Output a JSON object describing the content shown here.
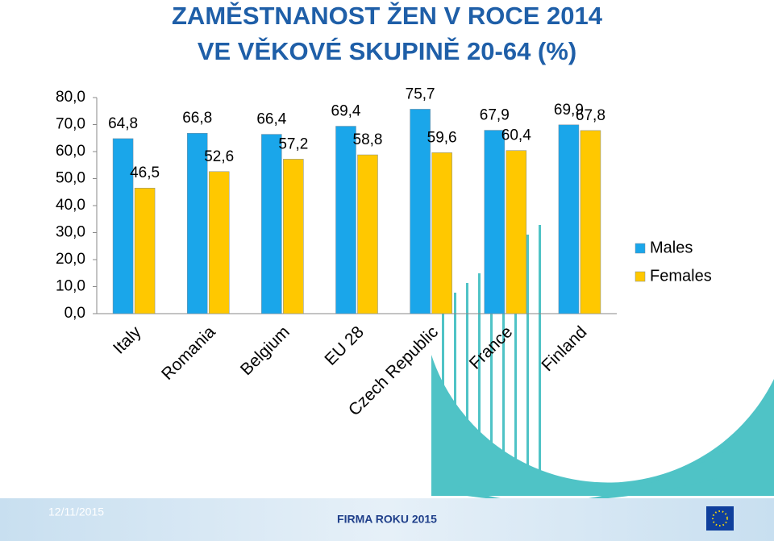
{
  "chart_data": {
    "type": "bar",
    "title": [
      "ZAMĚSTNANOST ŽEN V ROCE 2014",
      "VE VĚKOVÉ SKUPINĚ 20-64 (%)"
    ],
    "categories": [
      "Italy",
      "Romania",
      "Belgium",
      "EU 28",
      "Czech Republic",
      "France",
      "Finland"
    ],
    "series": [
      {
        "name": "Males",
        "color": "#1aa6ea",
        "values": [
          64.8,
          66.8,
          66.4,
          69.4,
          75.7,
          67.9,
          69.9
        ],
        "value_labels": [
          "64,8",
          "66,8",
          "66,4",
          "69,4",
          "75,7",
          "67,9",
          "69,9"
        ]
      },
      {
        "name": "Females",
        "color": "#ffc800",
        "values": [
          46.5,
          52.6,
          57.2,
          58.8,
          59.6,
          60.4,
          67.8
        ],
        "value_labels": [
          "46,5",
          "52,6",
          "57,2",
          "58,8",
          "59,6",
          "60,4",
          "67,8"
        ]
      }
    ],
    "ylim": [
      0,
      80
    ],
    "yticks": [
      {
        "value": 0,
        "label": "0,0"
      },
      {
        "value": 10,
        "label": "10,0"
      },
      {
        "value": 20,
        "label": "20,0"
      },
      {
        "value": 30,
        "label": "30,0"
      },
      {
        "value": 40,
        "label": "40,0"
      },
      {
        "value": 50,
        "label": "50,0"
      },
      {
        "value": 60,
        "label": "60,0"
      },
      {
        "value": 70,
        "label": "70,0"
      },
      {
        "value": 80,
        "label": "80,0"
      }
    ],
    "grid": false,
    "legend": "right"
  },
  "footer": {
    "date": "12/11/2015",
    "event": "FIRMA ROKU 2015"
  }
}
